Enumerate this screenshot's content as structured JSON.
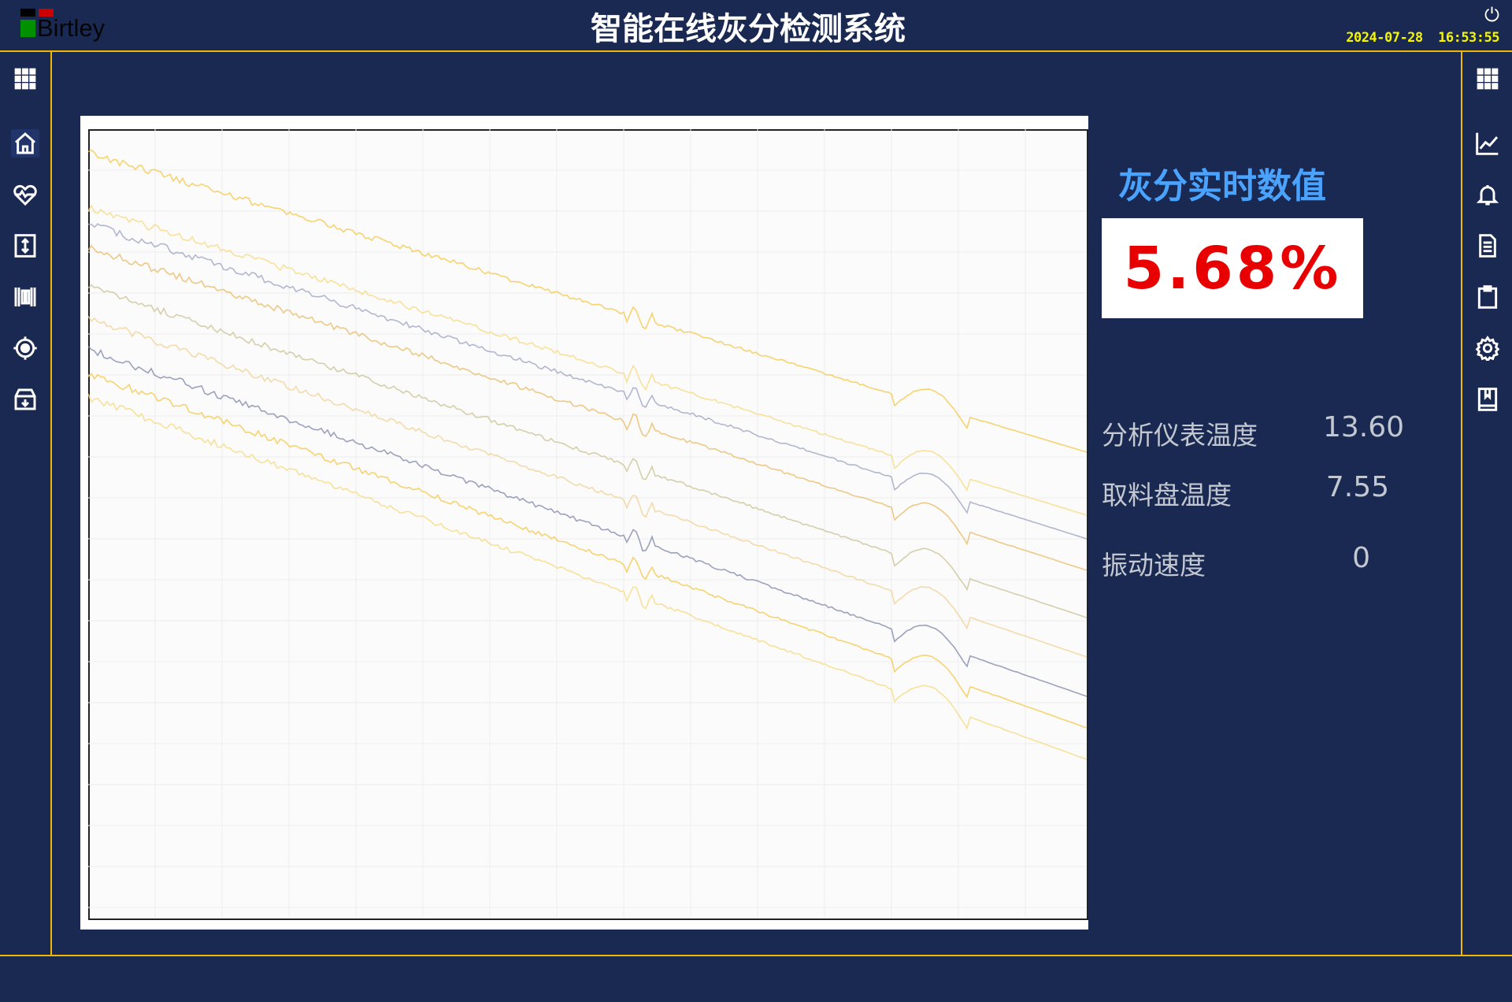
{
  "header": {
    "logo_text": "Birtley",
    "title": "智能在线灰分检测系统",
    "datetime": "2024-07-28  16:53:55",
    "power_icon": "power-icon"
  },
  "left_nav": [
    "grid-menu-icon",
    "home-icon",
    "heartbeat-icon",
    "expand-vertical-icon",
    "barcode-icon",
    "target-icon",
    "archive-download-icon"
  ],
  "right_nav": [
    "grid-menu-icon",
    "line-chart-icon",
    "bell-icon",
    "document-icon",
    "clipboard-icon",
    "gear-icon",
    "bookmark-book-icon"
  ],
  "realtime": {
    "title": "灰分实时数值",
    "value": "5.68%",
    "value_color": "#e80000"
  },
  "params": [
    {
      "label": "分析仪表温度",
      "value": "13.60"
    },
    {
      "label": "取料盘温度",
      "value": "7.55"
    },
    {
      "label": "振动速度",
      "value": "0"
    }
  ],
  "spectrum": {
    "line_colors": [
      "#f5c542",
      "#f7d87a",
      "#9aa0c0",
      "#e8b860",
      "#c8c090",
      "#f0d090",
      "#7c84a8"
    ]
  }
}
